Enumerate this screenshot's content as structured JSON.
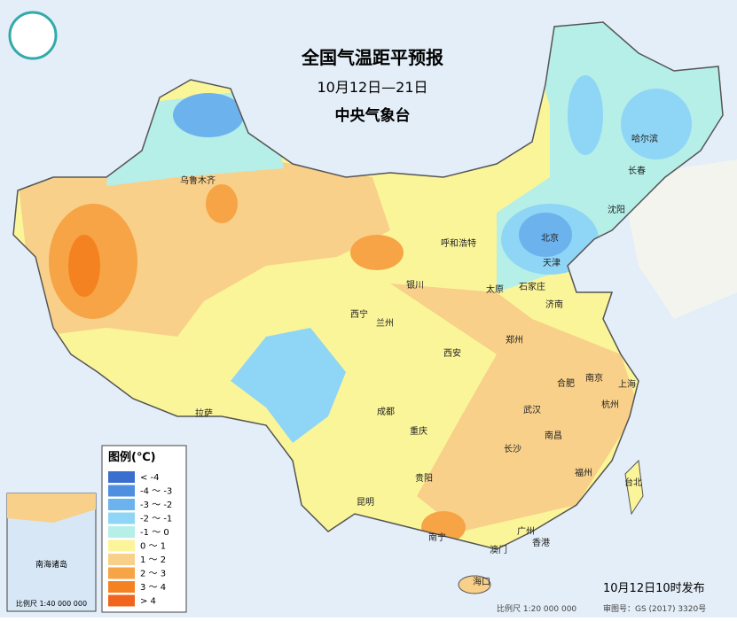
{
  "header": {
    "title": "全国气温距平预报",
    "date_range": "10月12日—21日",
    "issuer": "中央气象台"
  },
  "legend": {
    "title": "图例(℃)",
    "items": [
      {
        "label": "< -4",
        "color": "#3a6fcf"
      },
      {
        "label": "-4 ～ -3",
        "color": "#4f8fe0"
      },
      {
        "label": "-3 ～ -2",
        "color": "#6cb3ee"
      },
      {
        "label": "-2 ～ -1",
        "color": "#8fd5f5"
      },
      {
        "label": "-1 ～ 0",
        "color": "#b5efe8"
      },
      {
        "label": "0 ～ 1",
        "color": "#fbf59a"
      },
      {
        "label": "1 ～ 2",
        "color": "#f8d08a"
      },
      {
        "label": "2 ～ 3",
        "color": "#f6a445"
      },
      {
        "label": "3 ～ 4",
        "color": "#f58220"
      },
      {
        "label": "> 4",
        "color": "#f0641e"
      }
    ]
  },
  "cities": [
    "乌鲁木齐",
    "哈尔滨",
    "长春",
    "沈阳",
    "北京",
    "天津",
    "呼和浩特",
    "石家庄",
    "太原",
    "济南",
    "银川",
    "西宁",
    "兰州",
    "西安",
    "郑州",
    "合肥",
    "南京",
    "上海",
    "杭州",
    "武汉",
    "成都",
    "重庆",
    "拉萨",
    "长沙",
    "南昌",
    "福州",
    "台北",
    "贵阳",
    "昆明",
    "南宁",
    "广州",
    "香港",
    "澳门",
    "海口"
  ],
  "inset": {
    "label": "南海诸岛",
    "scale": "比例尺 1:40 000 000"
  },
  "footer": {
    "issued": "10月12日10时发布",
    "scale": "比例尺 1:20 000 000",
    "approval": "审图号：GS (2017) 3320号"
  }
}
